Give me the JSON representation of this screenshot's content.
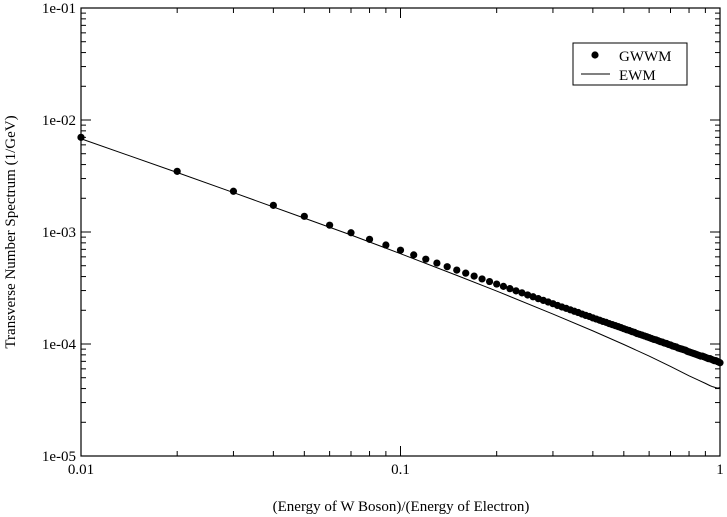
{
  "chart_data": {
    "type": "scatter",
    "title": "",
    "xlabel": "(Energy of W Boson)/(Energy of Electron)",
    "ylabel": "Transverse Number Spectrum (1/GeV)",
    "x_scale": "log",
    "y_scale": "log",
    "xlim": [
      0.01,
      1
    ],
    "ylim": [
      1e-05,
      0.1
    ],
    "x_tick_labels": [
      {
        "value": 0.01,
        "label": "0.01"
      },
      {
        "value": 0.1,
        "label": "0.1"
      },
      {
        "value": 1,
        "label": "1"
      }
    ],
    "y_tick_labels": [
      {
        "value": 1e-05,
        "label": "1e-05"
      },
      {
        "value": 0.0001,
        "label": "1e-04"
      },
      {
        "value": 0.001,
        "label": "1e-03"
      },
      {
        "value": 0.01,
        "label": "1e-02"
      },
      {
        "value": 0.1,
        "label": "1e-01"
      }
    ],
    "grid": false,
    "legend_position": "top-right",
    "series": [
      {
        "name": "GWWM",
        "style": "markers",
        "color": "#000000",
        "x": [
          0.01,
          0.02,
          0.03,
          0.04,
          0.05,
          0.06,
          0.07,
          0.08,
          0.09,
          0.1,
          0.11,
          0.12,
          0.13,
          0.14,
          0.15,
          0.16,
          0.17,
          0.18,
          0.19,
          0.2,
          0.21,
          0.22,
          0.23,
          0.24,
          0.25,
          0.26,
          0.27,
          0.28,
          0.29,
          0.3,
          0.31,
          0.32,
          0.33,
          0.34,
          0.35,
          0.36,
          0.37,
          0.38,
          0.39,
          0.4,
          0.41,
          0.42,
          0.43,
          0.44,
          0.45,
          0.46,
          0.47,
          0.48,
          0.49,
          0.5,
          0.51,
          0.52,
          0.53,
          0.54,
          0.55,
          0.56,
          0.57,
          0.58,
          0.59,
          0.6,
          0.61,
          0.62,
          0.63,
          0.64,
          0.65,
          0.66,
          0.67,
          0.68,
          0.69,
          0.7,
          0.71,
          0.72,
          0.73,
          0.74,
          0.75,
          0.76,
          0.77,
          0.78,
          0.79,
          0.8,
          0.81,
          0.82,
          0.83,
          0.84,
          0.85,
          0.86,
          0.87,
          0.88,
          0.89,
          0.9,
          0.91,
          0.92,
          0.93,
          0.94,
          0.95,
          0.96,
          0.97,
          0.98,
          0.99,
          1.0
        ],
        "y": [
          0.007,
          0.00348,
          0.00231,
          0.00173,
          0.00138,
          0.00115,
          0.000985,
          0.00086,
          0.000765,
          0.000688,
          0.000625,
          0.000572,
          0.000528,
          0.00049,
          0.000457,
          0.000429,
          0.000404,
          0.000381,
          0.000361,
          0.000343,
          0.000327,
          0.000312,
          0.000298,
          0.000286,
          0.000274,
          0.000264,
          0.000254,
          0.000245,
          0.000237,
          0.000229,
          0.000221,
          0.000214,
          0.000208,
          0.000202,
          0.000196,
          0.000191,
          0.000185,
          0.00018,
          0.000176,
          0.000171,
          0.000167,
          0.000163,
          0.000159,
          0.000156,
          0.000152,
          0.000149,
          0.000146,
          0.000143,
          0.00014,
          0.000137,
          0.000134,
          0.000132,
          0.000129,
          0.000127,
          0.000124,
          0.000122,
          0.00012,
          0.000118,
          0.000116,
          0.000114,
          0.000112,
          0.00011,
          0.000109,
          0.000107,
          0.000105,
          0.000104,
          0.000102,
          0.000101,
          9.9e-05,
          9.8e-05,
          9.6e-05,
          9.5e-05,
          9.4e-05,
          9.2e-05,
          9.1e-05,
          9e-05,
          8.9e-05,
          8.8e-05,
          8.6e-05,
          8.5e-05,
          8.4e-05,
          8.3e-05,
          8.2e-05,
          8.1e-05,
          8e-05,
          7.9e-05,
          7.8e-05,
          7.8e-05,
          7.7e-05,
          7.6e-05,
          7.5e-05,
          7.4e-05,
          7.4e-05,
          7.3e-05,
          7.2e-05,
          7.1e-05,
          7.1e-05,
          7e-05,
          6.9e-05,
          6.8e-05
        ]
      },
      {
        "name": "EWM",
        "style": "line",
        "color": "#000000",
        "x": [
          0.01,
          0.02,
          0.03,
          0.05,
          0.07,
          0.1,
          0.15,
          0.2,
          0.3,
          0.4,
          0.5,
          0.6,
          0.7,
          0.8,
          0.85,
          0.9,
          0.93,
          0.95,
          0.97,
          0.98,
          0.99,
          1.0
        ],
        "y": [
          0.0068,
          0.0034,
          0.00225,
          0.00133,
          0.00094,
          0.00064,
          0.00041,
          0.000297,
          0.000185,
          0.000131,
          9.9e-05,
          7.8e-05,
          6.3e-05,
          5.2e-05,
          4.8e-05,
          4.45e-05,
          4.25e-05,
          4.15e-05,
          4.08e-05,
          4.05e-05,
          4.05e-05,
          4.1e-05
        ]
      }
    ]
  }
}
